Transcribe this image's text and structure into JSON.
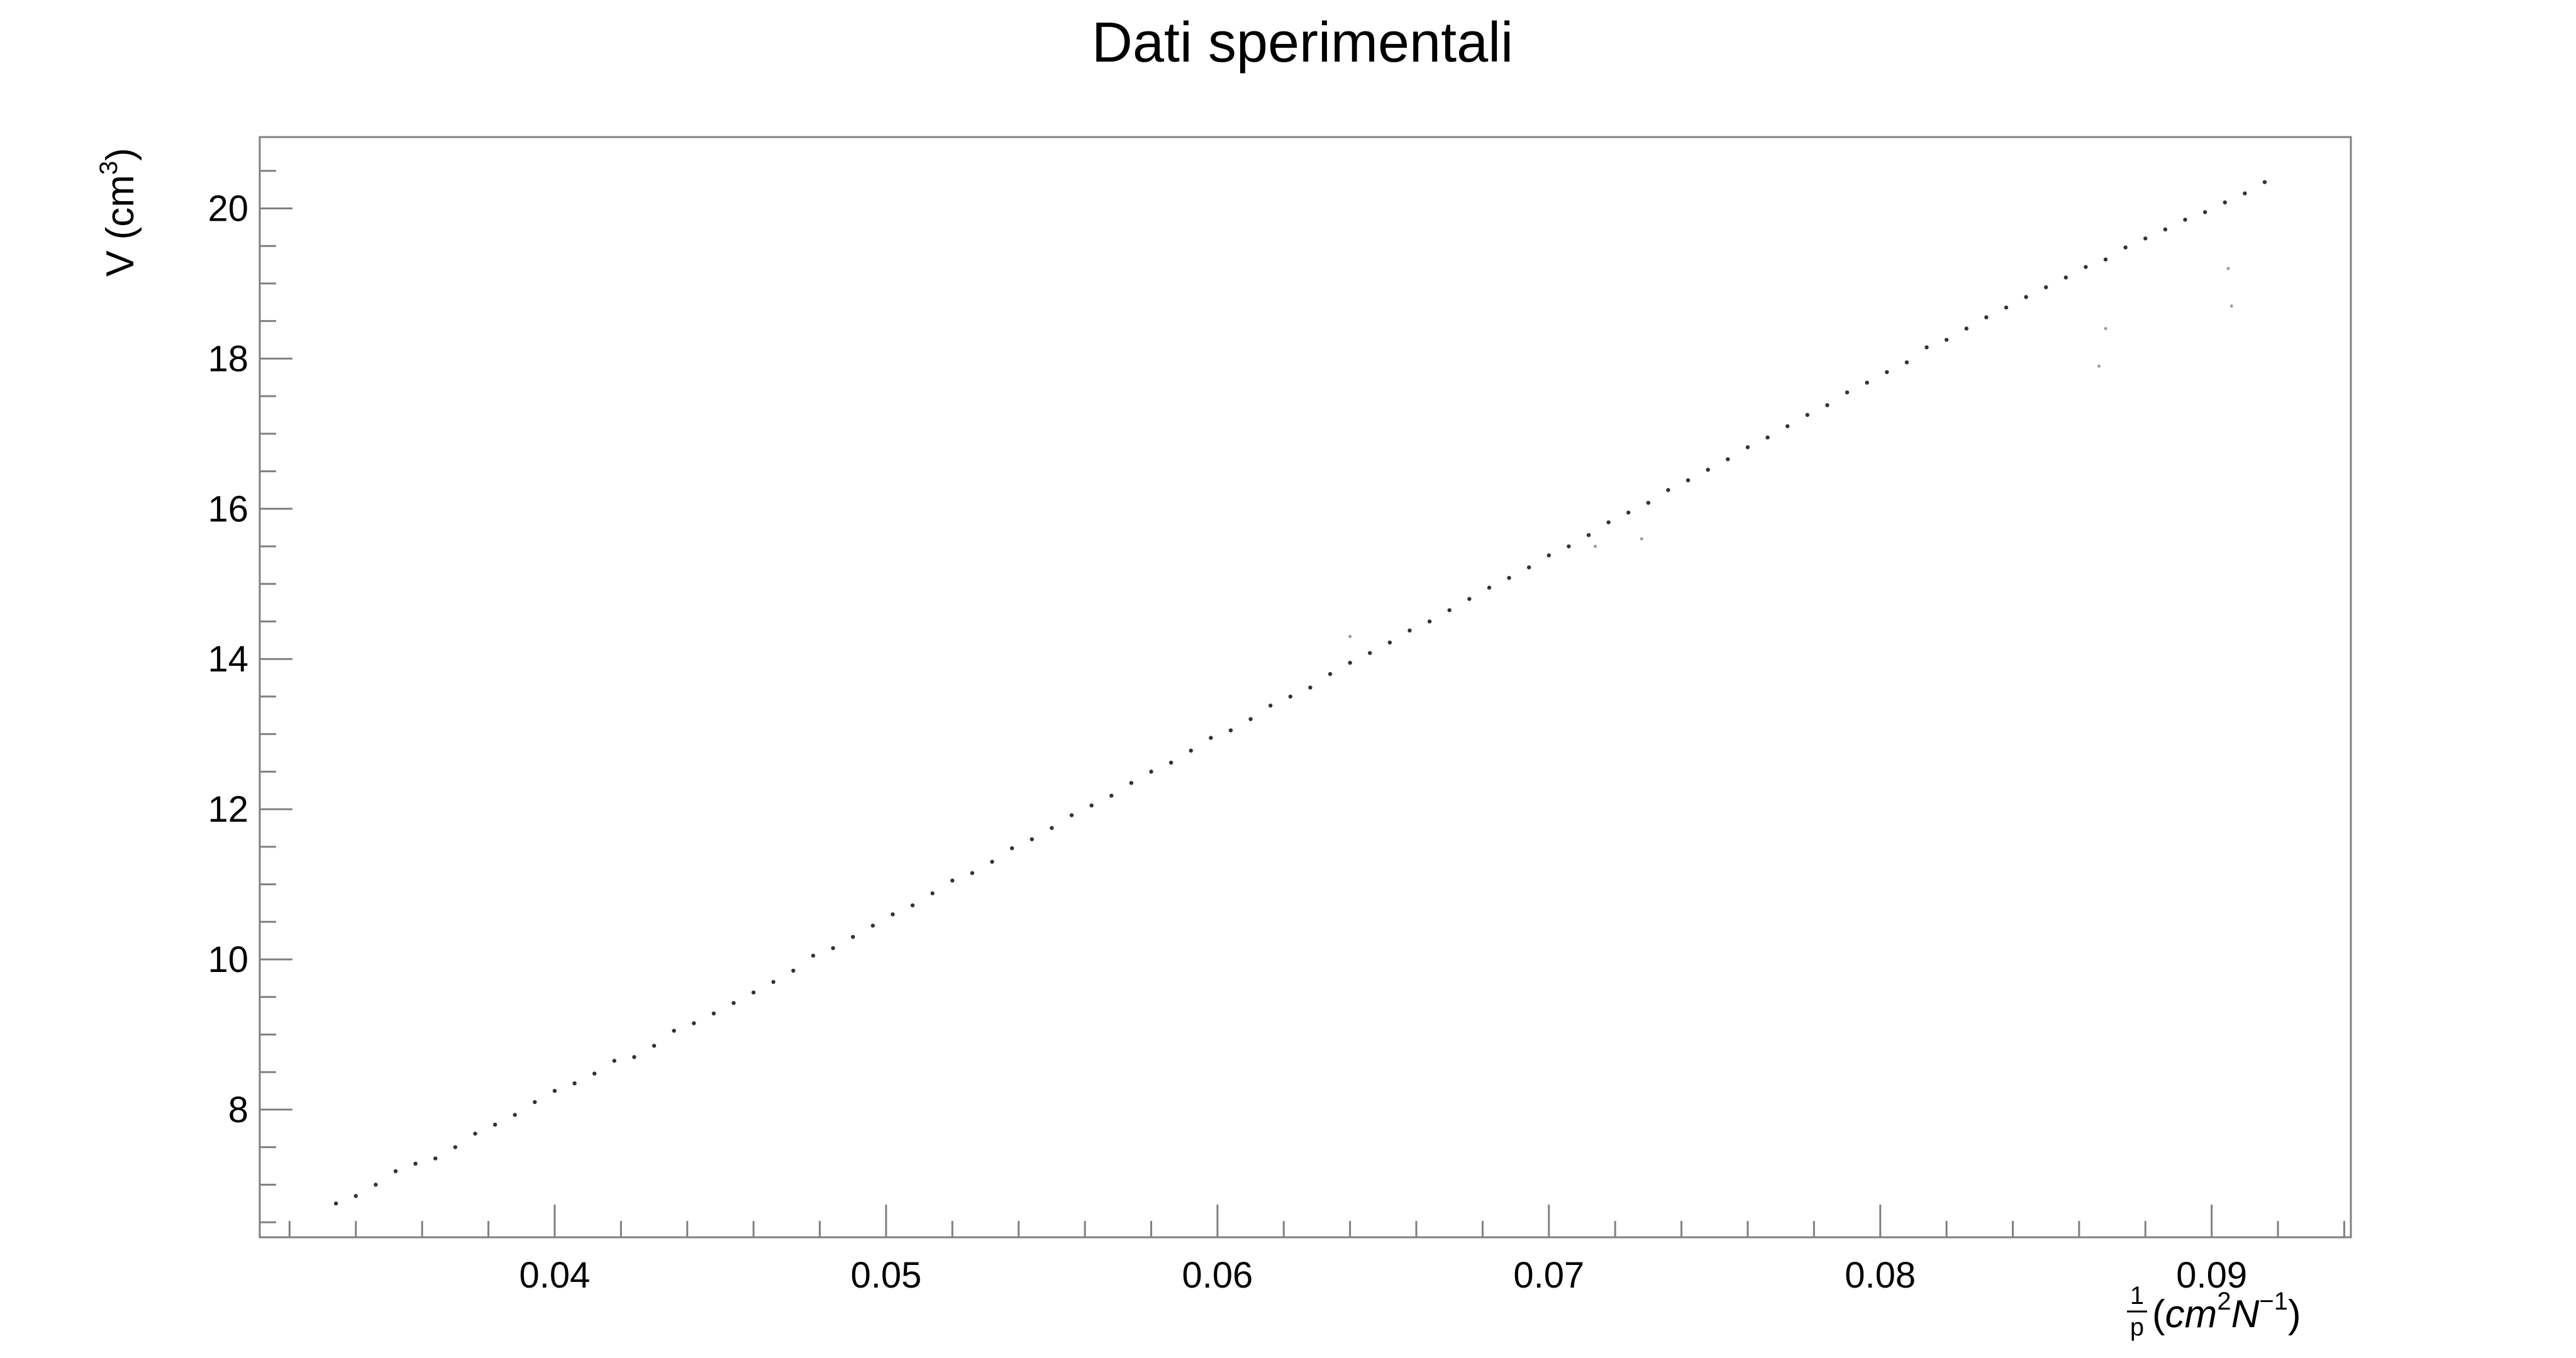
{
  "chart_data": {
    "type": "scatter",
    "title": "Dati sperimentali",
    "xlabel": {
      "fraction_numerator": "1",
      "fraction_denominator": "p",
      "open": "(",
      "base1": "cm",
      "exp1": "2",
      "base2": "N",
      "exp2": "−1",
      "close": ")"
    },
    "ylabel": {
      "text": "V (cm",
      "exp": "3",
      "close": ")"
    },
    "xlim": [
      0.0311,
      0.0942
    ],
    "ylim": [
      6.3,
      20.95
    ],
    "x_ticks": [
      {
        "value": 0.04,
        "label": "0.04"
      },
      {
        "value": 0.05,
        "label": "0.05"
      },
      {
        "value": 0.06,
        "label": "0.06"
      },
      {
        "value": 0.07,
        "label": "0.07"
      },
      {
        "value": 0.08,
        "label": "0.08"
      },
      {
        "value": 0.09,
        "label": "0.09"
      }
    ],
    "y_ticks": [
      {
        "value": 8,
        "label": "8"
      },
      {
        "value": 10,
        "label": "10"
      },
      {
        "value": 12,
        "label": "12"
      },
      {
        "value": 14,
        "label": "14"
      },
      {
        "value": 16,
        "label": "16"
      },
      {
        "value": 18,
        "label": "18"
      },
      {
        "value": 20,
        "label": "20"
      }
    ],
    "x_minor_step": 0.002,
    "y_minor_step": 0.5,
    "grid": false,
    "series": [
      {
        "x": [
          0.0334,
          0.034,
          0.0346,
          0.0352,
          0.0358,
          0.0364,
          0.037,
          0.0376,
          0.0382,
          0.0388,
          0.0394,
          0.04,
          0.0406,
          0.0412,
          0.0418,
          0.0424,
          0.043,
          0.0436,
          0.0442,
          0.0448,
          0.0454,
          0.046,
          0.0466,
          0.0472,
          0.0478,
          0.0484,
          0.049,
          0.0496,
          0.0502,
          0.0508,
          0.0514,
          0.052,
          0.0526,
          0.0532,
          0.0538,
          0.0544,
          0.055,
          0.0556,
          0.0562,
          0.0568,
          0.0574,
          0.058,
          0.0586,
          0.0592,
          0.0598,
          0.0604,
          0.061,
          0.0616,
          0.0622,
          0.0628,
          0.0634,
          0.064,
          0.0646,
          0.0652,
          0.0658,
          0.0664,
          0.067,
          0.0676,
          0.0682,
          0.0688,
          0.0694,
          0.07,
          0.0706,
          0.0712,
          0.0718,
          0.0724,
          0.073,
          0.0736,
          0.0742,
          0.0748,
          0.0754,
          0.076,
          0.0766,
          0.0772,
          0.0778,
          0.0784,
          0.079,
          0.0796,
          0.0802,
          0.0808,
          0.0814,
          0.082,
          0.0826,
          0.0832,
          0.0838,
          0.0844,
          0.085,
          0.0856,
          0.0862,
          0.0868,
          0.0874,
          0.088,
          0.0886,
          0.0892,
          0.0898,
          0.0904,
          0.091,
          0.0916
        ],
        "y": [
          6.75,
          6.85,
          7.0,
          7.18,
          7.28,
          7.35,
          7.5,
          7.68,
          7.8,
          7.93,
          8.1,
          8.25,
          8.35,
          8.48,
          8.65,
          8.7,
          8.85,
          9.05,
          9.15,
          9.28,
          9.42,
          9.56,
          9.7,
          9.85,
          10.05,
          10.15,
          10.3,
          10.45,
          10.6,
          10.72,
          10.88,
          11.05,
          11.15,
          11.3,
          11.48,
          11.6,
          11.75,
          11.92,
          12.05,
          12.18,
          12.35,
          12.5,
          12.62,
          12.78,
          12.95,
          13.05,
          13.2,
          13.38,
          13.5,
          13.62,
          13.8,
          13.95,
          14.08,
          14.22,
          14.38,
          14.5,
          14.65,
          14.8,
          14.95,
          15.08,
          15.22,
          15.38,
          15.5,
          15.65,
          15.82,
          15.95,
          16.08,
          16.25,
          16.38,
          16.52,
          16.66,
          16.82,
          16.95,
          17.1,
          17.25,
          17.38,
          17.55,
          17.68,
          17.82,
          17.95,
          18.15,
          18.25,
          18.4,
          18.55,
          18.68,
          18.82,
          18.95,
          19.08,
          19.22,
          19.32,
          19.48,
          19.6,
          19.72,
          19.85,
          19.95,
          20.08,
          20.2,
          20.35
        ]
      }
    ],
    "outliers": [
      {
        "x": 0.064,
        "y": 14.3
      },
      {
        "x": 0.0714,
        "y": 15.5
      },
      {
        "x": 0.0728,
        "y": 15.6
      },
      {
        "x": 0.0866,
        "y": 17.9
      },
      {
        "x": 0.0868,
        "y": 18.4
      },
      {
        "x": 0.0906,
        "y": 18.7
      },
      {
        "x": 0.0905,
        "y": 19.2
      }
    ]
  }
}
